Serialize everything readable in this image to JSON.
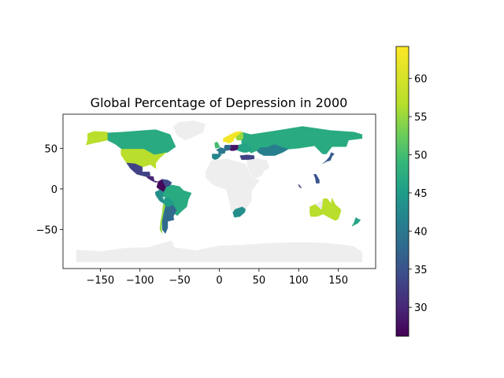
{
  "chart_data": {
    "type": "choropleth-map",
    "title": "Global Percentage of Depression in 2000",
    "x_ticks": [
      -150,
      -100,
      -50,
      0,
      50,
      100,
      150
    ],
    "y_ticks": [
      50,
      0,
      -50
    ],
    "xlim": [
      -197,
      197
    ],
    "ylim": [
      -98,
      92
    ],
    "no_data_color": "#eeeeee",
    "colormap": "viridis",
    "colorbar": {
      "min": 26.2,
      "max": 64.2,
      "ticks": [
        30,
        35,
        40,
        45,
        50,
        55,
        60
      ]
    },
    "regions": [
      {
        "name": "Antarctica",
        "value": null
      },
      {
        "name": "Greenland",
        "value": null
      },
      {
        "name": "Africa",
        "value": null
      },
      {
        "name": "Middle East",
        "value": null
      },
      {
        "name": "Western Australia interior",
        "value": null
      },
      {
        "name": "Canada",
        "value": 47
      },
      {
        "name": "Alaska",
        "value": 57
      },
      {
        "name": "United States",
        "value": 57
      },
      {
        "name": "Mexico",
        "value": 33
      },
      {
        "name": "Central America",
        "value": 30
      },
      {
        "name": "Colombia",
        "value": 27
      },
      {
        "name": "Venezuela",
        "value": 34
      },
      {
        "name": "Brazil",
        "value": 47
      },
      {
        "name": "Peru",
        "value": 43
      },
      {
        "name": "Bolivia",
        "value": 45
      },
      {
        "name": "Chile",
        "value": 55
      },
      {
        "name": "Argentina",
        "value": 38
      },
      {
        "name": "South Africa",
        "value": 43
      },
      {
        "name": "Russia",
        "value": 47
      },
      {
        "name": "Kazakhstan",
        "value": 41
      },
      {
        "name": "Scandinavia",
        "value": 63
      },
      {
        "name": "Finland",
        "value": 55
      },
      {
        "name": "United Kingdom",
        "value": 50
      },
      {
        "name": "France",
        "value": 40
      },
      {
        "name": "Spain",
        "value": 42
      },
      {
        "name": "Germany",
        "value": 38
      },
      {
        "name": "Central Europe",
        "value": 28
      },
      {
        "name": "Eastern Europe",
        "value": 46
      },
      {
        "name": "Turkey",
        "value": 33
      },
      {
        "name": "Japan",
        "value": 36
      },
      {
        "name": "Philippines",
        "value": 35
      },
      {
        "name": "Malaysia",
        "value": 33
      },
      {
        "name": "Australia",
        "value": 57
      },
      {
        "name": "New Zealand",
        "value": 46
      }
    ]
  }
}
